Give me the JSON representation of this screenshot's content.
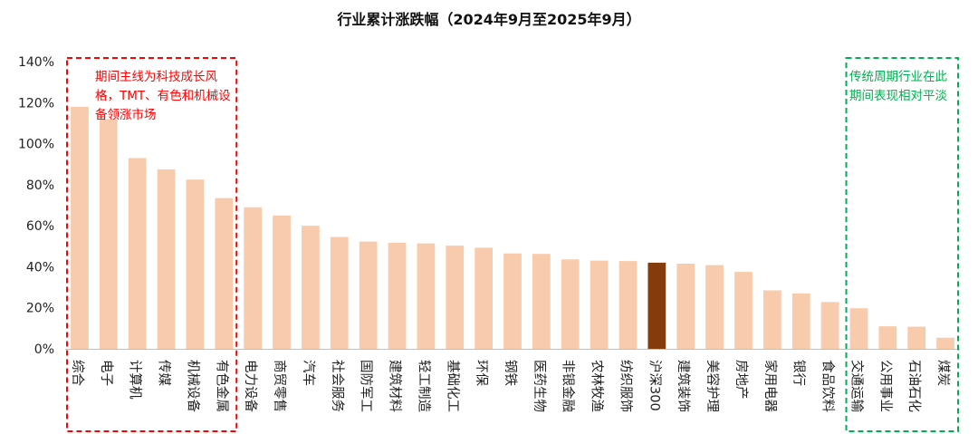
{
  "chart_data": {
    "type": "bar",
    "title": "行业累计涨跌幅（2024年9月至2025年9月）",
    "xlabel": "",
    "ylabel": "",
    "ylim": [
      0,
      1.4
    ],
    "yticks": [
      "0%",
      "20%",
      "40%",
      "60%",
      "80%",
      "100%",
      "120%",
      "140%"
    ],
    "grid": false,
    "legend": "none",
    "categories": [
      "综合",
      "电子",
      "计算机",
      "传媒",
      "机械设备",
      "有色金属",
      "电力设备",
      "商贸零售",
      "汽车",
      "社会服务",
      "国防军工",
      "建筑材料",
      "轻工制造",
      "基础化工",
      "环保",
      "钢铁",
      "医药生物",
      "非银金融",
      "农林牧渔",
      "纺织服饰",
      "沪深300",
      "建筑装饰",
      "美容护理",
      "房地产",
      "家用电器",
      "银行",
      "食品饮料",
      "交通运输",
      "公用事业",
      "石油石化",
      "煤炭"
    ],
    "values": [
      1.18,
      1.12,
      0.93,
      0.875,
      0.825,
      0.735,
      0.69,
      0.65,
      0.6,
      0.545,
      0.523,
      0.517,
      0.514,
      0.503,
      0.493,
      0.465,
      0.463,
      0.436,
      0.43,
      0.428,
      0.42,
      0.415,
      0.408,
      0.375,
      0.285,
      0.27,
      0.228,
      0.198,
      0.11,
      0.108,
      0.054
    ],
    "highlight_category": "沪深300",
    "colors": {
      "bar": "#F8CBAD",
      "highlight": "#843C0C",
      "left_box": "#FF0000",
      "right_box": "#00B050"
    },
    "annotations": [
      {
        "text": "期间主线为科技成长风格，TMT、有色和机械设备领涨市场",
        "color": "#FF0000",
        "range": [
          "综合",
          "有色金属"
        ]
      },
      {
        "text": "传统周期行业在此期间表现相对平淡",
        "color": "#00B050",
        "range": [
          "交通运输",
          "煤炭"
        ]
      }
    ]
  }
}
